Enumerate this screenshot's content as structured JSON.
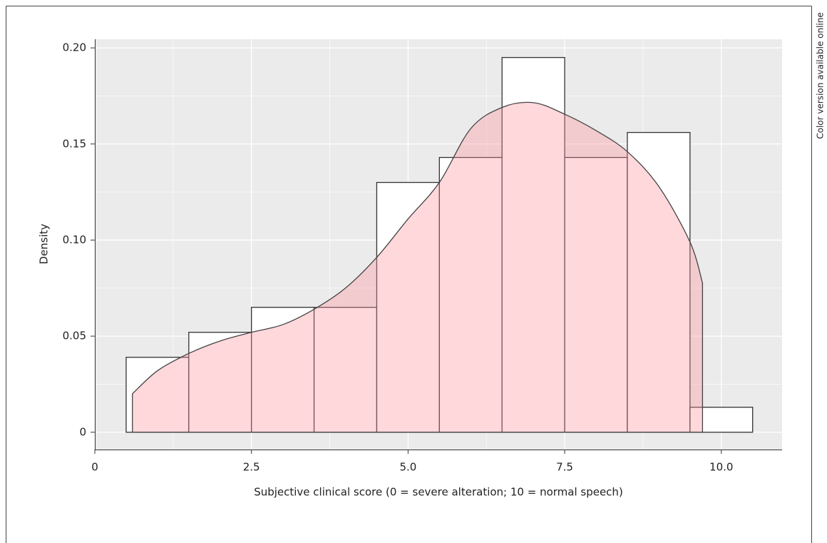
{
  "chart_data": {
    "type": "histogram",
    "side_note": "Color version available online",
    "x_label": "Subjective clinical score (0 = severe alteration; 10 = normal speech)",
    "y_label": "Density",
    "bins": [
      0.5,
      1.5,
      2.5,
      3.5,
      4.5,
      5.5,
      6.5,
      7.5,
      8.5,
      9.5,
      10.5
    ],
    "values": [
      0.039,
      0.052,
      0.065,
      0.065,
      0.13,
      0.143,
      0.195,
      0.143,
      0.156,
      0.013
    ],
    "bar_color": "#ffffff",
    "density": {
      "color": "#ff8f9c",
      "x": [
        0.6,
        1.0,
        1.5,
        2.0,
        2.5,
        3.0,
        3.5,
        4.0,
        4.5,
        5.0,
        5.5,
        6.0,
        6.5,
        7.0,
        7.5,
        8.0,
        8.5,
        9.0,
        9.5,
        9.7
      ],
      "y": [
        0.02,
        0.032,
        0.041,
        0.0475,
        0.052,
        0.056,
        0.064,
        0.075,
        0.091,
        0.111,
        0.13,
        0.158,
        0.169,
        0.1715,
        0.1655,
        0.157,
        0.146,
        0.128,
        0.099,
        0.0776
      ]
    },
    "xlim": [
      0,
      10.97
    ],
    "ylim": [
      -0.009,
      0.2045
    ],
    "xticks": [
      0,
      2.5,
      {
        "value": 5,
        "label": "5.0"
      },
      7.5,
      {
        "value": 10,
        "label": "10.0"
      }
    ],
    "yticks": [
      0,
      0.05,
      {
        "value": 0.1,
        "label": "0.10"
      },
      0.15,
      {
        "value": 0.2,
        "label": "0.20"
      }
    ],
    "grid": true
  }
}
